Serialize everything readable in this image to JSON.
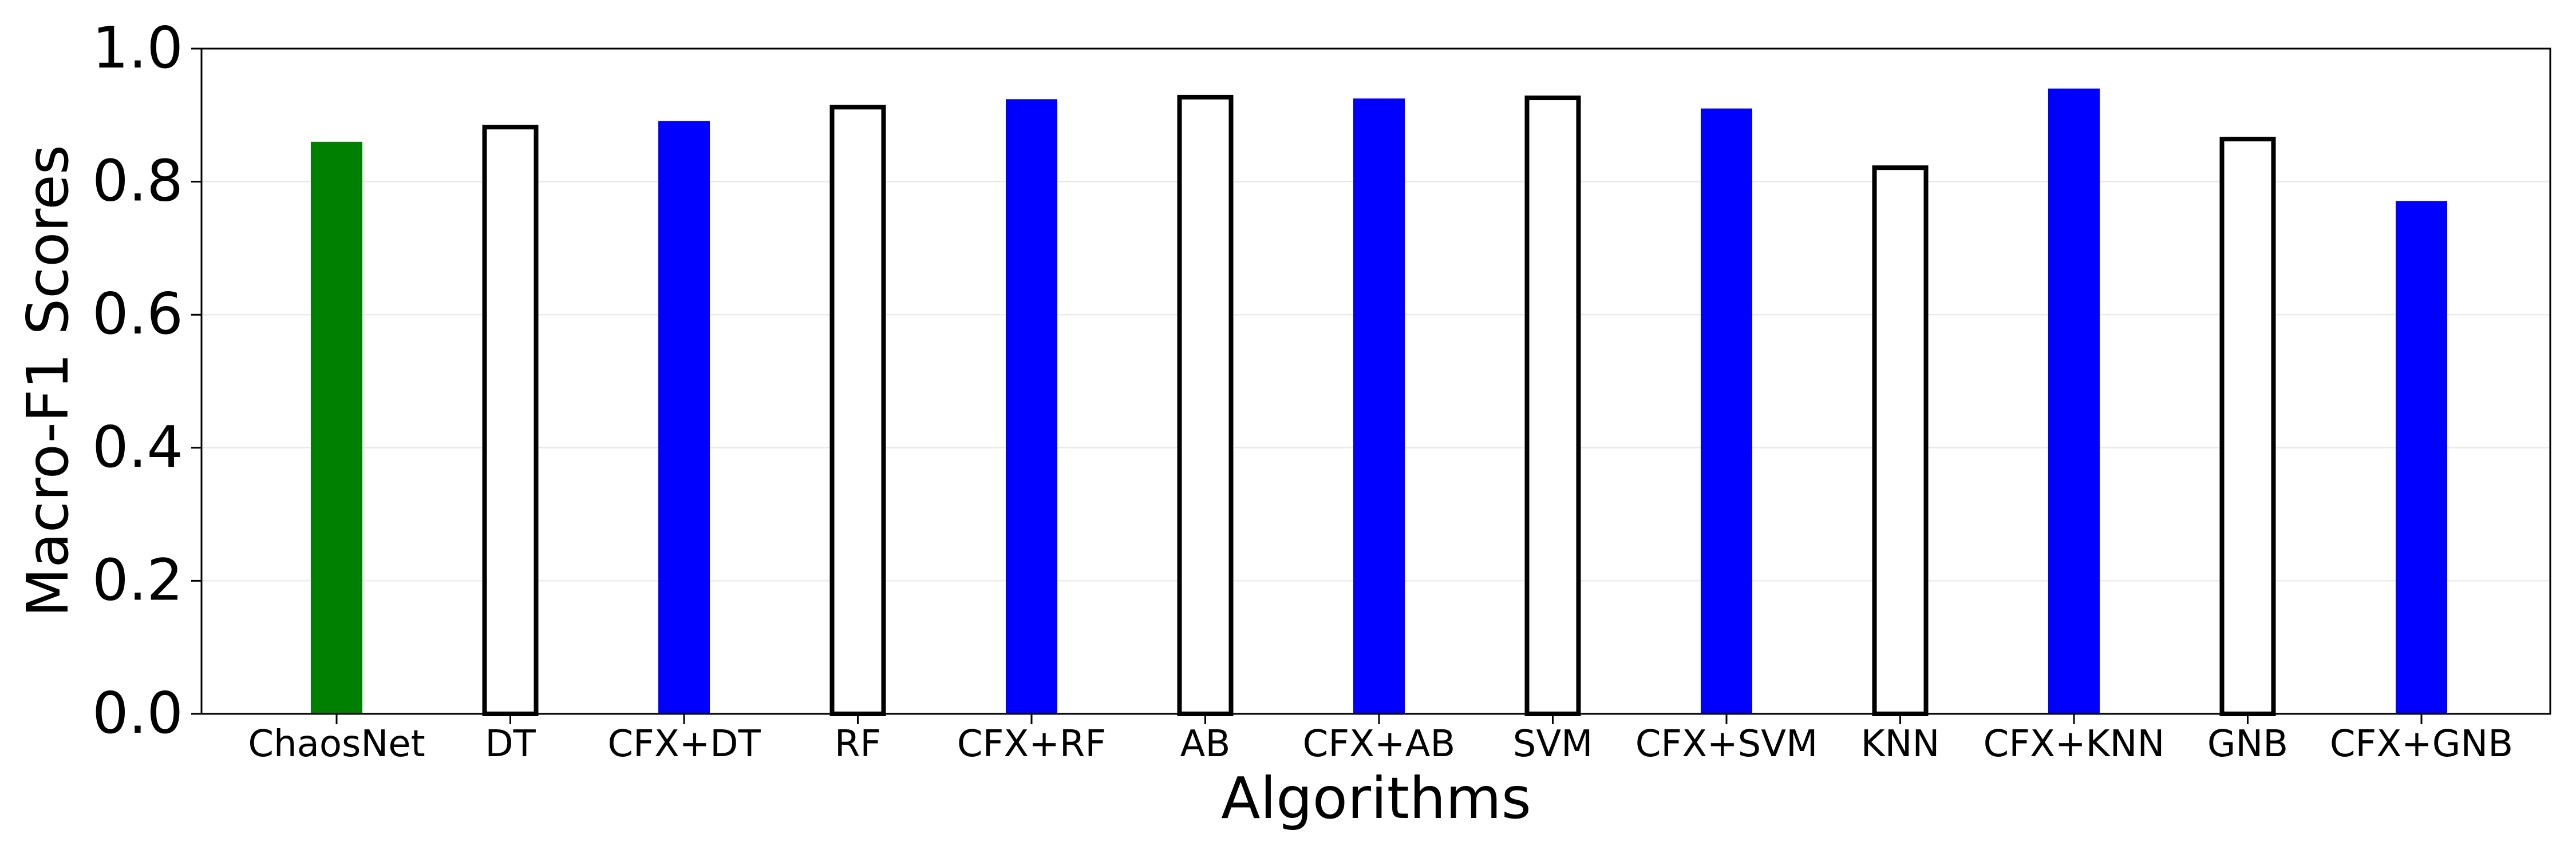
{
  "chart_data": {
    "type": "bar",
    "xlabel": "Algorithms",
    "ylabel": "Macro-F1 Scores",
    "ylim": [
      0,
      1.0
    ],
    "yticks": [
      "0.0",
      "0.2",
      "0.4",
      "0.6",
      "0.8",
      "1.0"
    ],
    "grid": "horizontal, faint",
    "categories": [
      "ChaosNet",
      "DT",
      "CFX+DT",
      "RF",
      "CFX+RF",
      "AB",
      "CFX+AB",
      "SVM",
      "CFX+SVM",
      "KNN",
      "CFX+KNN",
      "GNB",
      "CFX+GNB"
    ],
    "values": [
      0.86,
      0.882,
      0.891,
      0.912,
      0.924,
      0.927,
      0.925,
      0.926,
      0.91,
      0.821,
      0.94,
      0.864,
      0.771
    ],
    "bar_styles": [
      "green-filled",
      "outline",
      "blue-filled",
      "outline",
      "blue-filled",
      "outline",
      "blue-filled",
      "outline",
      "blue-filled",
      "outline",
      "blue-filled",
      "outline",
      "blue-filled"
    ],
    "colors": {
      "green-filled": "#008000",
      "blue-filled": "#0000ff",
      "outline": "#000000"
    }
  }
}
